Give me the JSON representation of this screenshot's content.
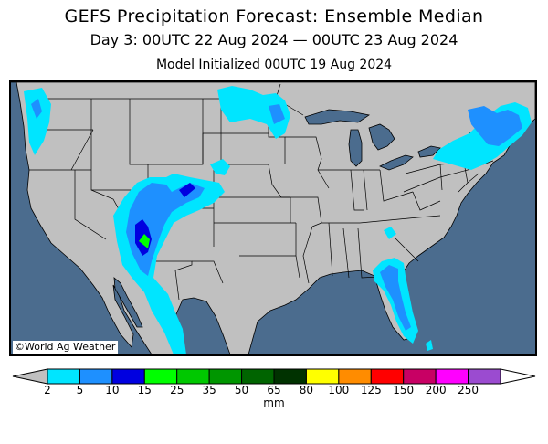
{
  "title": "GEFS Precipitation Forecast: Ensemble Median",
  "subtitle": "Day 3: 00UTC 22 Aug 2024 — 00UTC 23 Aug 2024",
  "init_line": "Model Initialized 00UTC 19 Aug 2024",
  "credit": "©World Ag Weather",
  "legend": {
    "unit": "mm",
    "ticks": [
      "2",
      "5",
      "10",
      "15",
      "25",
      "35",
      "50",
      "65",
      "80",
      "100",
      "125",
      "150",
      "200",
      "250"
    ],
    "colors": [
      "#00e5ff",
      "#1e90ff",
      "#0000e0",
      "#00ff00",
      "#00c800",
      "#009600",
      "#006400",
      "#003200",
      "#ffff00",
      "#ff8c00",
      "#ff0000",
      "#c80064",
      "#ff00ff",
      "#9b4bd0"
    ]
  },
  "map_colors": {
    "ocean": "#4b6c8e",
    "land": "#c0c0c0",
    "lakes": "#4b6c8e",
    "boundaries": "#000000"
  }
}
